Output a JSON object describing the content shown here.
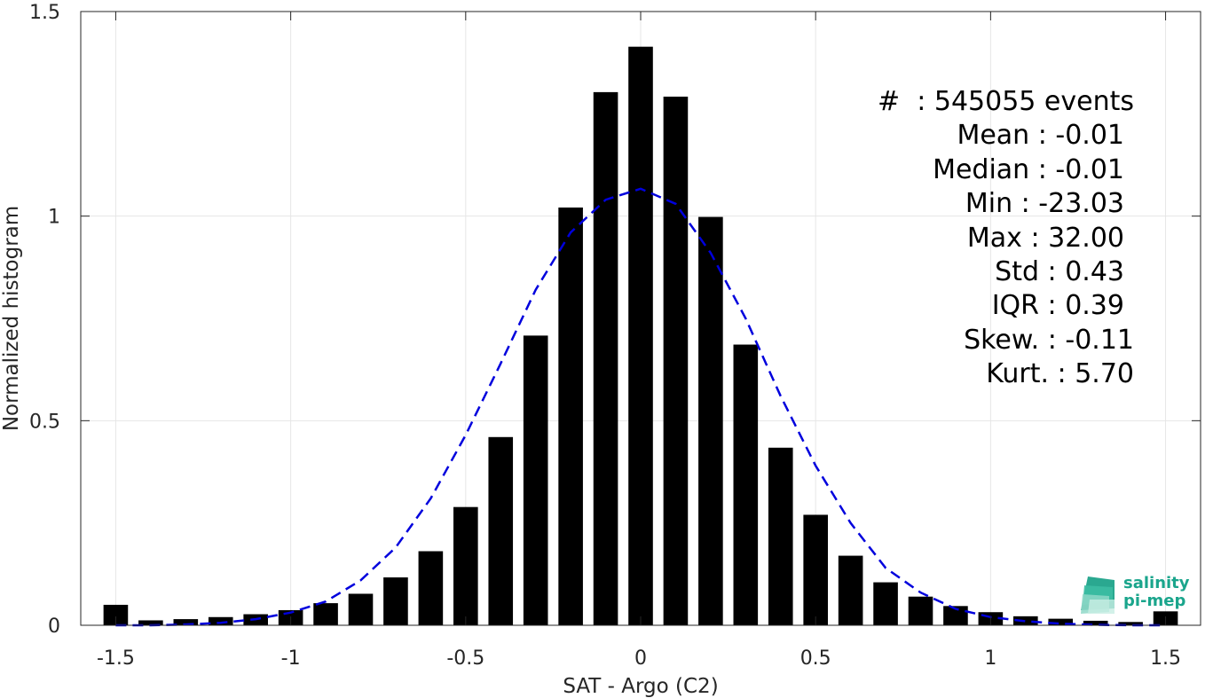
{
  "chart_data": {
    "type": "bar",
    "xlabel": "SAT - Argo (C2)",
    "ylabel": "Normalized histogram",
    "xlim": [
      -1.6,
      1.6
    ],
    "ylim": [
      0,
      1.5
    ],
    "xticks": [
      -1.5,
      -1,
      -0.5,
      0,
      0.5,
      1,
      1.5
    ],
    "xtick_labels": [
      "-1.5",
      "-1",
      "-0.5",
      "0",
      "0.5",
      "1",
      "1.5"
    ],
    "yticks": [
      0,
      0.5,
      1,
      1.5
    ],
    "ytick_labels": [
      "0",
      "0.5",
      "1",
      "1.5"
    ],
    "grid": true,
    "bar_width": 0.07,
    "series": [
      {
        "kind": "bar",
        "color": "#000000",
        "x": [
          -1.5,
          -1.4,
          -1.3,
          -1.2,
          -1.1,
          -1.0,
          -0.9,
          -0.8,
          -0.7,
          -0.6,
          -0.5,
          -0.4,
          -0.3,
          -0.2,
          -0.1,
          0.0,
          0.1,
          0.2,
          0.3,
          0.4,
          0.5,
          0.6,
          0.7,
          0.8,
          0.9,
          1.0,
          1.1,
          1.2,
          1.3,
          1.4,
          1.5
        ],
        "values": [
          0.05,
          0.012,
          0.015,
          0.02,
          0.027,
          0.037,
          0.054,
          0.077,
          0.117,
          0.181,
          0.289,
          0.46,
          0.708,
          1.021,
          1.303,
          1.414,
          1.292,
          0.998,
          0.686,
          0.434,
          0.27,
          0.17,
          0.105,
          0.07,
          0.047,
          0.032,
          0.022,
          0.016,
          0.011,
          0.008,
          0.034
        ]
      },
      {
        "kind": "line",
        "style": "dashed",
        "color": "#0000dd",
        "x": [
          -1.5,
          -1.4,
          -1.3,
          -1.2,
          -1.1,
          -1.0,
          -0.9,
          -0.8,
          -0.7,
          -0.6,
          -0.5,
          -0.4,
          -0.3,
          -0.2,
          -0.1,
          0.0,
          0.1,
          0.2,
          0.3,
          0.4,
          0.5,
          0.6,
          0.7,
          0.8,
          0.9,
          1.0,
          1.1,
          1.2,
          1.3,
          1.4,
          1.5
        ],
        "values": [
          0.0,
          0.0,
          0.002,
          0.006,
          0.015,
          0.031,
          0.058,
          0.11,
          0.19,
          0.31,
          0.465,
          0.64,
          0.82,
          0.96,
          1.04,
          1.067,
          1.03,
          0.91,
          0.75,
          0.56,
          0.39,
          0.25,
          0.14,
          0.08,
          0.04,
          0.02,
          0.01,
          0.004,
          0.001,
          0.0,
          0.0
        ]
      }
    ],
    "annotations": [
      "#  : 545055 events",
      "Mean : -0.01",
      "Median : -0.01",
      "Min : -23.03",
      "Max : 32.00",
      "Std : 0.43",
      "IQR : 0.39",
      "Skew. : -0.11",
      "Kurt. : 5.70"
    ]
  },
  "logo": {
    "line1": "salinity",
    "line2": "pi-mep",
    "color": "#1aa58c"
  }
}
